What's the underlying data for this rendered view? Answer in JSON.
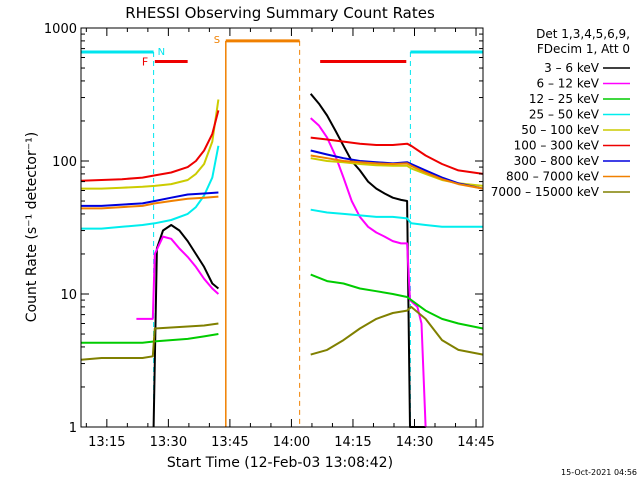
{
  "chart_data": {
    "type": "line",
    "title": "RHESSI Observing Summary Count Rates",
    "xlabel": "Start Time (12-Feb-03 13:08:42)",
    "ylabel": "Count Rate (s⁻¹ detector⁻¹)",
    "y_scale": "log",
    "ylim": [
      1,
      1000
    ],
    "xlim_minutes_from_13_08_42": [
      0,
      98
    ],
    "x_tick_labels": [
      "13:15",
      "13:30",
      "13:45",
      "14:00",
      "14:15",
      "14:30",
      "14:45"
    ],
    "x_tick_minutes": [
      6.3,
      21.3,
      36.3,
      51.3,
      66.3,
      81.3,
      96.3
    ],
    "y_tick_labels": [
      "1",
      "10",
      "100",
      "1000"
    ],
    "y_tick_values": [
      1,
      10,
      100,
      1000
    ],
    "grid": false,
    "legend_position": "right",
    "legend_header": [
      "Det 1,3,4,5,6,9,",
      "FDecim 1, Att 0"
    ],
    "timestamp": "15-Oct-2021 04:56",
    "markers": [
      {
        "label": "N",
        "kind": "night",
        "color": "#00e5ee",
        "ranges_minutes": [
          [
            0,
            17.7
          ],
          [
            80.3,
            98
          ]
        ],
        "level": 660
      },
      {
        "label": "F",
        "kind": "flag",
        "color": "#ee0000",
        "ranges_minutes": [
          [
            18.0,
            26.0
          ],
          [
            58.3,
            79.3
          ]
        ],
        "level": 560
      },
      {
        "label": "S",
        "kind": "saa",
        "color": "#f08000",
        "ranges_minutes": [
          [
            35.3,
            53.3
          ]
        ],
        "level": 800
      }
    ],
    "gaps_minutes": [
      [
        33.7,
        53.6
      ]
    ],
    "series": [
      {
        "name": "3 – 6 keV",
        "color": "#000000",
        "points": [
          [
            17.7,
            1.0
          ],
          [
            18.5,
            22
          ],
          [
            20,
            30
          ],
          [
            22,
            33
          ],
          [
            24,
            30
          ],
          [
            26,
            25
          ],
          [
            28,
            20
          ],
          [
            30,
            16
          ],
          [
            32,
            12
          ],
          [
            33.5,
            11
          ],
          [
            56,
            320
          ],
          [
            58,
            270
          ],
          [
            60,
            220
          ],
          [
            62,
            170
          ],
          [
            64,
            130
          ],
          [
            66,
            100
          ],
          [
            68,
            85
          ],
          [
            70,
            70
          ],
          [
            72,
            62
          ],
          [
            74,
            57
          ],
          [
            76,
            53
          ],
          [
            78,
            51
          ],
          [
            79.5,
            50
          ],
          [
            80.2,
            1.0
          ],
          [
            84,
            1.0
          ]
        ]
      },
      {
        "name": "6 – 12 keV",
        "color": "#ff00ff",
        "points": [
          [
            13.5,
            6.5
          ],
          [
            17.5,
            6.5
          ],
          [
            18,
            20
          ],
          [
            20,
            27
          ],
          [
            22,
            26
          ],
          [
            24,
            22
          ],
          [
            26,
            19
          ],
          [
            28,
            16
          ],
          [
            30,
            13
          ],
          [
            32,
            11
          ],
          [
            33.5,
            10
          ],
          [
            56,
            210
          ],
          [
            58,
            185
          ],
          [
            60,
            150
          ],
          [
            62,
            110
          ],
          [
            64,
            75
          ],
          [
            66,
            50
          ],
          [
            68,
            38
          ],
          [
            70,
            32
          ],
          [
            72,
            29
          ],
          [
            74,
            27
          ],
          [
            76,
            25
          ],
          [
            78,
            24
          ],
          [
            79.5,
            24
          ],
          [
            80.2,
            9
          ],
          [
            82,
            8
          ],
          [
            83,
            6
          ],
          [
            84,
            1.0
          ]
        ]
      },
      {
        "name": "12 – 25 keV",
        "color": "#00cc00",
        "points": [
          [
            0,
            4.3
          ],
          [
            5,
            4.3
          ],
          [
            10,
            4.3
          ],
          [
            15,
            4.3
          ],
          [
            18,
            4.4
          ],
          [
            22,
            4.5
          ],
          [
            26,
            4.6
          ],
          [
            30,
            4.8
          ],
          [
            33.5,
            5.0
          ],
          [
            56,
            14
          ],
          [
            60,
            12.5
          ],
          [
            64,
            12
          ],
          [
            68,
            11
          ],
          [
            72,
            10.5
          ],
          [
            76,
            10
          ],
          [
            79.5,
            9.5
          ],
          [
            80.5,
            9
          ],
          [
            84,
            7.5
          ],
          [
            88,
            6.5
          ],
          [
            92,
            6
          ],
          [
            98,
            5.5
          ]
        ]
      },
      {
        "name": "25 – 50 keV",
        "color": "#00eeee",
        "points": [
          [
            0,
            31
          ],
          [
            5,
            31
          ],
          [
            10,
            32
          ],
          [
            15,
            33
          ],
          [
            18,
            34
          ],
          [
            22,
            36
          ],
          [
            26,
            40
          ],
          [
            28,
            45
          ],
          [
            30,
            55
          ],
          [
            32,
            75
          ],
          [
            33.5,
            130
          ],
          [
            56,
            43
          ],
          [
            60,
            41
          ],
          [
            64,
            40
          ],
          [
            68,
            39
          ],
          [
            72,
            38
          ],
          [
            76,
            38
          ],
          [
            79.5,
            37
          ],
          [
            80.5,
            34
          ],
          [
            84,
            33
          ],
          [
            88,
            32
          ],
          [
            92,
            32
          ],
          [
            98,
            32
          ]
        ]
      },
      {
        "name": "50 – 100 keV",
        "color": "#cccc00",
        "points": [
          [
            0,
            62
          ],
          [
            5,
            62
          ],
          [
            10,
            63
          ],
          [
            15,
            64
          ],
          [
            18,
            65
          ],
          [
            22,
            67
          ],
          [
            26,
            72
          ],
          [
            28,
            80
          ],
          [
            30,
            95
          ],
          [
            32,
            140
          ],
          [
            33.5,
            290
          ],
          [
            56,
            105
          ],
          [
            60,
            100
          ],
          [
            64,
            98
          ],
          [
            68,
            95
          ],
          [
            72,
            93
          ],
          [
            76,
            92
          ],
          [
            79.5,
            92
          ],
          [
            80.5,
            88
          ],
          [
            84,
            80
          ],
          [
            88,
            72
          ],
          [
            92,
            68
          ],
          [
            98,
            65
          ]
        ]
      },
      {
        "name": "100 – 300 keV",
        "color": "#ee0000",
        "points": [
          [
            0,
            71
          ],
          [
            5,
            72
          ],
          [
            10,
            73
          ],
          [
            15,
            75
          ],
          [
            18,
            78
          ],
          [
            22,
            82
          ],
          [
            26,
            90
          ],
          [
            28,
            100
          ],
          [
            30,
            120
          ],
          [
            32,
            160
          ],
          [
            33.5,
            240
          ],
          [
            56,
            150
          ],
          [
            60,
            145
          ],
          [
            64,
            140
          ],
          [
            68,
            135
          ],
          [
            72,
            132
          ],
          [
            76,
            132
          ],
          [
            79.5,
            135
          ],
          [
            80.5,
            130
          ],
          [
            84,
            110
          ],
          [
            88,
            95
          ],
          [
            92,
            85
          ],
          [
            98,
            80
          ]
        ]
      },
      {
        "name": "300 – 800 keV",
        "color": "#0000dd",
        "points": [
          [
            0,
            46
          ],
          [
            5,
            46
          ],
          [
            10,
            47
          ],
          [
            15,
            48
          ],
          [
            18,
            50
          ],
          [
            22,
            53
          ],
          [
            26,
            56
          ],
          [
            30,
            57
          ],
          [
            33.5,
            58
          ],
          [
            56,
            120
          ],
          [
            60,
            112
          ],
          [
            64,
            105
          ],
          [
            68,
            100
          ],
          [
            72,
            98
          ],
          [
            76,
            96
          ],
          [
            79.5,
            98
          ],
          [
            80.5,
            95
          ],
          [
            84,
            85
          ],
          [
            88,
            75
          ],
          [
            92,
            68
          ],
          [
            98,
            62
          ]
        ]
      },
      {
        "name": "800 – 7000 keV",
        "color": "#f08000",
        "points": [
          [
            0,
            44
          ],
          [
            5,
            44
          ],
          [
            10,
            45
          ],
          [
            15,
            46
          ],
          [
            18,
            48
          ],
          [
            22,
            50
          ],
          [
            26,
            52
          ],
          [
            30,
            53
          ],
          [
            33.5,
            54
          ],
          [
            56,
            110
          ],
          [
            60,
            105
          ],
          [
            64,
            100
          ],
          [
            68,
            98
          ],
          [
            72,
            96
          ],
          [
            76,
            95
          ],
          [
            79.5,
            96
          ],
          [
            80.5,
            92
          ],
          [
            84,
            82
          ],
          [
            88,
            73
          ],
          [
            92,
            67
          ],
          [
            98,
            62
          ]
        ]
      },
      {
        "name": "7000 – 15000 keV",
        "color": "#808000",
        "points": [
          [
            0,
            3.2
          ],
          [
            5,
            3.3
          ],
          [
            10,
            3.3
          ],
          [
            15,
            3.3
          ],
          [
            17.5,
            3.4
          ],
          [
            18,
            5.5
          ],
          [
            22,
            5.6
          ],
          [
            26,
            5.7
          ],
          [
            30,
            5.8
          ],
          [
            33.5,
            6.0
          ],
          [
            56,
            3.5
          ],
          [
            60,
            3.8
          ],
          [
            64,
            4.5
          ],
          [
            68,
            5.5
          ],
          [
            72,
            6.5
          ],
          [
            76,
            7.2
          ],
          [
            79.5,
            7.5
          ],
          [
            80.5,
            8
          ],
          [
            84,
            6.5
          ],
          [
            88,
            4.5
          ],
          [
            92,
            3.8
          ],
          [
            98,
            3.5
          ]
        ]
      }
    ]
  }
}
